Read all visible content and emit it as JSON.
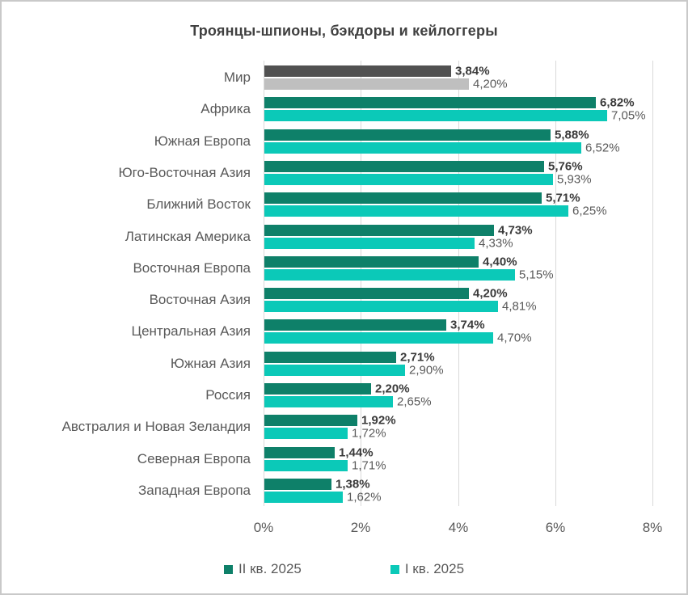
{
  "chart_data": {
    "type": "bar",
    "orientation": "horizontal",
    "title": "Троянцы-шпионы, бэкдоры и кейлоггеры",
    "categories": [
      "Мир",
      "Африка",
      "Южная Европа",
      "Юго-Восточная Азия",
      "Ближний Восток",
      "Латинская Америка",
      "Восточная Европа",
      "Восточная Азия",
      "Центральная Азия",
      "Южная Азия",
      "Россия",
      "Австралия и Новая Зеландия",
      "Северная Европа",
      "Западная Европа"
    ],
    "series": [
      {
        "name": "II кв. 2025",
        "color": "#0e8069",
        "world_color": "#515151",
        "values": [
          3.84,
          6.82,
          5.88,
          5.76,
          5.71,
          4.73,
          4.4,
          4.2,
          3.74,
          2.71,
          2.2,
          1.92,
          1.44,
          1.38
        ],
        "labels": [
          "3,84%",
          "6,82%",
          "5,88%",
          "5,76%",
          "5,71%",
          "4,73%",
          "4,40%",
          "4,20%",
          "3,74%",
          "2,71%",
          "2,20%",
          "1,92%",
          "1,44%",
          "1,38%"
        ]
      },
      {
        "name": "I кв. 2025",
        "color": "#0bc9b8",
        "world_color": "#bfbfbf",
        "values": [
          4.2,
          7.05,
          6.52,
          5.93,
          6.25,
          4.33,
          5.15,
          4.81,
          4.7,
          2.9,
          2.65,
          1.72,
          1.71,
          1.62
        ],
        "labels": [
          "4,20%",
          "7,05%",
          "6,52%",
          "5,93%",
          "6,25%",
          "4,33%",
          "5,15%",
          "4,81%",
          "4,70%",
          "2,90%",
          "2,65%",
          "1,72%",
          "1,71%",
          "1,62%"
        ]
      }
    ],
    "world_category": "Мир",
    "x_axis": {
      "min": 0,
      "max": 8,
      "ticks": [
        {
          "value": 0,
          "label": "0%"
        },
        {
          "value": 2,
          "label": "2%"
        },
        {
          "value": 4,
          "label": "4%"
        },
        {
          "value": 6,
          "label": "6%"
        },
        {
          "value": 8,
          "label": "8%"
        }
      ],
      "gridlines": true
    },
    "legend_position": "bottom"
  }
}
